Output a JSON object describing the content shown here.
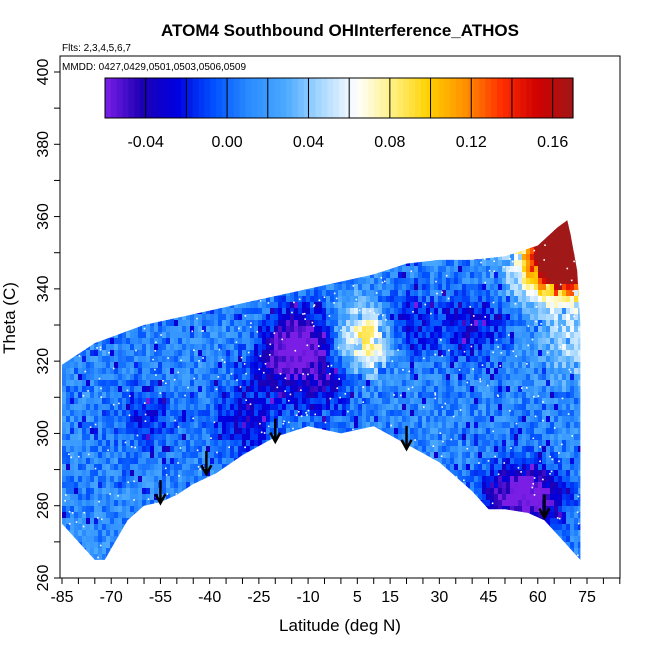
{
  "chart_data": {
    "type": "heatmap",
    "title": "ATOM4 Southbound OHInterference_ATHOS",
    "flights_label": "Flts: 2,3,4,5,6,7",
    "dates_label": "MMDD: 0427,0429,0501,0503,0506,0509",
    "xlabel": "Latitude (deg N)",
    "ylabel": "Theta (C)",
    "xlim": [
      -88,
      85
    ],
    "ylim": [
      260,
      405
    ],
    "x_ticks": [
      -85,
      -70,
      -55,
      -40,
      -25,
      -10,
      5,
      15,
      30,
      45,
      60,
      75
    ],
    "y_ticks": [
      260,
      280,
      300,
      320,
      340,
      360,
      380,
      400
    ],
    "colorbar": {
      "min": -0.06,
      "max": 0.17,
      "ticks": [
        "-0.04",
        "0.00",
        "0.04",
        "0.08",
        "0.12",
        "0.16"
      ],
      "tick_values": [
        -0.04,
        0.0,
        0.04,
        0.08,
        0.12,
        0.16
      ],
      "colors": [
        "#7a1ee6",
        "#1e00b4",
        "#0000e0",
        "#0050ff",
        "#2a8cff",
        "#4aa8ff",
        "#a8d8ff",
        "#ffffff",
        "#fff080",
        "#ffd000",
        "#ff9000",
        "#ff3000",
        "#d00000",
        "#a01818"
      ]
    },
    "tropopause_arrows": [
      {
        "lat": -55,
        "theta": 281
      },
      {
        "lat": -41,
        "theta": 289
      },
      {
        "lat": -20,
        "theta": 298
      },
      {
        "lat": 20,
        "theta": 296
      },
      {
        "lat": 62,
        "theta": 277
      }
    ],
    "upper_boundary": [
      [
        -85,
        319
      ],
      [
        -75,
        325
      ],
      [
        -60,
        330
      ],
      [
        -45,
        333
      ],
      [
        -30,
        336
      ],
      [
        -15,
        339
      ],
      [
        0,
        342
      ],
      [
        10,
        344
      ],
      [
        20,
        347
      ],
      [
        30,
        348
      ],
      [
        40,
        348
      ],
      [
        50,
        349
      ],
      [
        60,
        352
      ],
      [
        66,
        357
      ],
      [
        69,
        359
      ],
      [
        70,
        355
      ],
      [
        72,
        345
      ],
      [
        73,
        330
      ],
      [
        73,
        318
      ]
    ],
    "lower_boundary": [
      [
        73,
        265
      ],
      [
        70,
        268
      ],
      [
        66,
        272
      ],
      [
        62,
        276
      ],
      [
        57,
        278
      ],
      [
        50,
        279
      ],
      [
        45,
        279
      ],
      [
        40,
        284
      ],
      [
        30,
        292
      ],
      [
        20,
        297
      ],
      [
        10,
        302
      ],
      [
        0,
        300
      ],
      [
        -10,
        302
      ],
      [
        -20,
        299
      ],
      [
        -30,
        294
      ],
      [
        -38,
        289
      ],
      [
        -45,
        286
      ],
      [
        -50,
        283
      ],
      [
        -55,
        281
      ],
      [
        -60,
        280
      ],
      [
        -65,
        276
      ],
      [
        -72,
        265
      ],
      [
        -75,
        265
      ],
      [
        -85,
        275
      ],
      [
        -85,
        300
      ]
    ],
    "field_anomalies": [
      {
        "lat": 68,
        "theta": 345,
        "value": 0.13
      },
      {
        "lat": 69,
        "theta": 352,
        "value": 0.15
      },
      {
        "lat": 70,
        "theta": 356,
        "value": 0.17
      },
      {
        "lat": 62,
        "theta": 348,
        "value": 0.06
      },
      {
        "lat": 55,
        "theta": 346,
        "value": 0.03
      },
      {
        "lat": 72,
        "theta": 325,
        "value": 0.05
      },
      {
        "lat": 8,
        "theta": 326,
        "value": 0.09
      },
      {
        "lat": -12,
        "theta": 326,
        "value": -0.06
      },
      {
        "lat": -20,
        "theta": 318,
        "value": -0.03
      },
      {
        "lat": -5,
        "theta": 314,
        "value": -0.03
      },
      {
        "lat": 20,
        "theta": 330,
        "value": -0.03
      },
      {
        "lat": 40,
        "theta": 330,
        "value": -0.03
      },
      {
        "lat": 50,
        "theta": 283,
        "value": -0.04
      },
      {
        "lat": 60,
        "theta": 282,
        "value": -0.05
      },
      {
        "lat": -30,
        "theta": 303,
        "value": -0.03
      },
      {
        "lat": -60,
        "theta": 305,
        "value": -0.02
      },
      {
        "lat": -78,
        "theta": 285,
        "value": 0.01
      }
    ]
  }
}
